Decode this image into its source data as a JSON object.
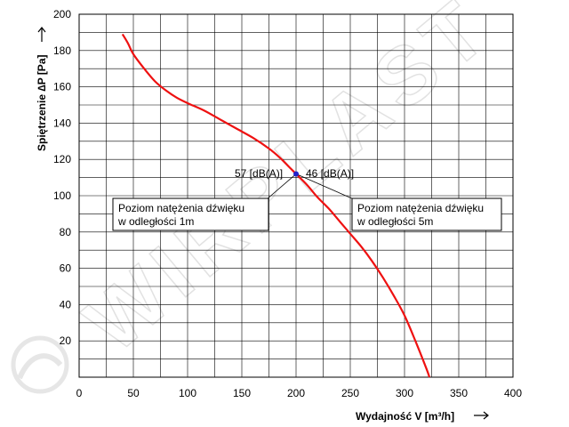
{
  "chart_data": {
    "type": "line",
    "xlabel": "Wydajność V [m³/h]",
    "ylabel": "Spiętrzenie ∆P [Pa]",
    "xlim": [
      0,
      400
    ],
    "ylim": [
      0,
      200
    ],
    "x_ticks": [
      0,
      50,
      100,
      150,
      200,
      250,
      300,
      350,
      400
    ],
    "y_ticks": [
      20,
      40,
      60,
      80,
      100,
      120,
      140,
      160,
      180,
      200
    ],
    "grid": true,
    "series": [
      {
        "color": "#ee1111",
        "points": [
          [
            40,
            189
          ],
          [
            45,
            184
          ],
          [
            50,
            178
          ],
          [
            60,
            170
          ],
          [
            70,
            163
          ],
          [
            80,
            158
          ],
          [
            90,
            154
          ],
          [
            100,
            151
          ],
          [
            115,
            147
          ],
          [
            130,
            142
          ],
          [
            145,
            137
          ],
          [
            160,
            132
          ],
          [
            175,
            126
          ],
          [
            185,
            121
          ],
          [
            195,
            115
          ],
          [
            200,
            112
          ],
          [
            210,
            106
          ],
          [
            220,
            99
          ],
          [
            230,
            93
          ],
          [
            240,
            86
          ],
          [
            250,
            79
          ],
          [
            260,
            72
          ],
          [
            270,
            64
          ],
          [
            280,
            55
          ],
          [
            290,
            45
          ],
          [
            300,
            34
          ],
          [
            310,
            20
          ],
          [
            320,
            5
          ],
          [
            323,
            0
          ]
        ]
      }
    ],
    "operating_point": {
      "x": 200,
      "y": 112,
      "color": "#2222cc"
    },
    "annotations": {
      "left_value": "57 [dB(A)]",
      "right_value": "46 [dB(A)]",
      "left_box": [
        "Poziom natężenia dźwięku",
        "w odległości 1m"
      ],
      "right_box": [
        "Poziom natężenia dźwięku",
        "w odległości 5m"
      ]
    }
  },
  "watermark": {
    "text": "WIRPLAST",
    "color": "#e2e2e2"
  }
}
